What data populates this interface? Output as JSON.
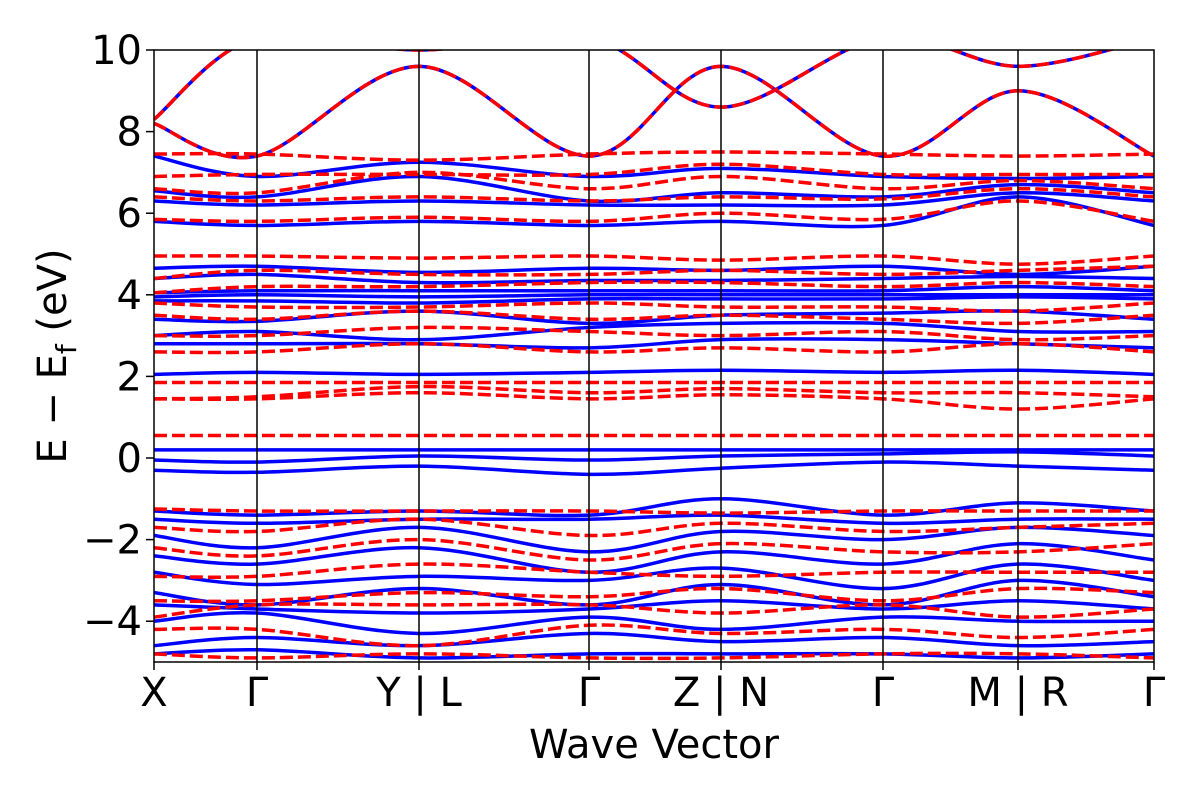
{
  "chart_data": {
    "type": "line",
    "title": "",
    "xlabel": "Wave Vector",
    "ylabel": {
      "main": "E − E",
      "sub": "f",
      "unit": " (eV)"
    },
    "ylim": [
      -5,
      10
    ],
    "xlim": [
      0,
      1
    ],
    "y_ticks": [
      -4,
      -2,
      0,
      2,
      4,
      6,
      8,
      10
    ],
    "y_tick_labels": [
      "−4",
      "−2",
      "0",
      "2",
      "4",
      "6",
      "8",
      "10"
    ],
    "k_path_ticks": [
      {
        "label": "X",
        "pos": 0.0
      },
      {
        "label": "Γ",
        "pos": 0.103
      },
      {
        "label": "Y | L",
        "pos": 0.265
      },
      {
        "label": "Γ",
        "pos": 0.435
      },
      {
        "label": "Z | N",
        "pos": 0.567
      },
      {
        "label": "Γ",
        "pos": 0.729
      },
      {
        "label": "M | R",
        "pos": 0.864
      },
      {
        "label": "Γ",
        "pos": 1.0
      }
    ],
    "series_styles": [
      {
        "color": "#0000ff",
        "dash": "solid"
      },
      {
        "color": "#ff0000",
        "dash": "dashed"
      }
    ],
    "series": [
      {
        "style": 0,
        "x": [
          0,
          0.103,
          0.265,
          0.435,
          0.567,
          0.729,
          0.864,
          1
        ],
        "y": [
          0.2,
          0.2,
          0.2,
          0.2,
          0.2,
          0.2,
          0.2,
          0.2
        ]
      },
      {
        "style": 0,
        "x": [
          0,
          0.103,
          0.265,
          0.435,
          0.567,
          0.729,
          0.864,
          1
        ],
        "y": [
          -0.05,
          -0.1,
          0.05,
          -0.05,
          0.05,
          0.1,
          0.15,
          0.05
        ]
      },
      {
        "style": 0,
        "x": [
          0,
          0.103,
          0.265,
          0.435,
          0.567,
          0.729,
          0.864,
          1
        ],
        "y": [
          -0.3,
          -0.35,
          -0.2,
          -0.4,
          -0.25,
          -0.1,
          -0.2,
          -0.3
        ]
      },
      {
        "style": 0,
        "x": [
          0,
          0.103,
          0.265,
          0.435,
          0.567,
          0.729,
          0.864,
          1
        ],
        "y": [
          2.05,
          2.1,
          2.05,
          2.1,
          2.15,
          2.1,
          2.15,
          2.05
        ]
      },
      {
        "style": 0,
        "x": [
          0,
          0.103,
          0.265,
          0.435,
          0.567,
          0.729,
          0.864,
          1
        ],
        "y": [
          2.8,
          2.8,
          2.8,
          2.7,
          2.9,
          2.9,
          2.8,
          2.7
        ]
      },
      {
        "style": 0,
        "x": [
          0,
          0.103,
          0.265,
          0.435,
          0.567,
          0.729,
          0.864,
          1
        ],
        "y": [
          3.0,
          3.1,
          2.9,
          3.2,
          3.3,
          3.3,
          3.1,
          3.1
        ]
      },
      {
        "style": 0,
        "x": [
          0,
          0.103,
          0.265,
          0.435,
          0.567,
          0.729,
          0.864,
          1
        ],
        "y": [
          3.4,
          3.35,
          3.6,
          3.3,
          3.5,
          3.55,
          3.6,
          3.4
        ]
      },
      {
        "style": 0,
        "x": [
          0,
          0.103,
          0.265,
          0.435,
          0.567,
          0.729,
          0.864,
          1
        ],
        "y": [
          3.85,
          3.85,
          3.8,
          3.9,
          3.9,
          3.9,
          3.95,
          3.9
        ]
      },
      {
        "style": 0,
        "x": [
          0,
          0.103,
          0.265,
          0.435,
          0.567,
          0.729,
          0.864,
          1
        ],
        "y": [
          3.95,
          4.0,
          3.95,
          4.0,
          4.0,
          4.0,
          4.0,
          4.0
        ]
      },
      {
        "style": 0,
        "x": [
          0,
          0.103,
          0.265,
          0.435,
          0.567,
          0.729,
          0.864,
          1
        ],
        "y": [
          4.05,
          4.1,
          4.1,
          4.1,
          4.1,
          4.1,
          4.2,
          4.1
        ]
      },
      {
        "style": 0,
        "x": [
          0,
          0.103,
          0.265,
          0.435,
          0.567,
          0.729,
          0.864,
          1
        ],
        "y": [
          4.4,
          4.5,
          4.3,
          4.35,
          4.35,
          4.4,
          4.45,
          4.4
        ]
      },
      {
        "style": 0,
        "x": [
          0,
          0.103,
          0.265,
          0.435,
          0.567,
          0.729,
          0.864,
          1
        ],
        "y": [
          4.65,
          4.7,
          4.55,
          4.65,
          4.6,
          4.7,
          4.5,
          4.7
        ]
      },
      {
        "style": 0,
        "x": [
          0,
          0.103,
          0.265,
          0.435,
          0.567,
          0.729,
          0.864,
          1
        ],
        "y": [
          5.8,
          5.7,
          5.8,
          5.7,
          5.8,
          5.7,
          6.4,
          5.7
        ]
      },
      {
        "style": 0,
        "x": [
          0,
          0.103,
          0.265,
          0.435,
          0.567,
          0.729,
          0.864,
          1
        ],
        "y": [
          6.3,
          6.2,
          6.3,
          6.2,
          6.2,
          6.2,
          6.5,
          6.3
        ]
      },
      {
        "style": 0,
        "x": [
          0,
          0.103,
          0.265,
          0.435,
          0.567,
          0.729,
          0.864,
          1
        ],
        "y": [
          6.55,
          6.4,
          6.9,
          6.3,
          6.5,
          6.4,
          6.7,
          6.5
        ]
      },
      {
        "style": 0,
        "x": [
          0,
          0.103,
          0.265,
          0.435,
          0.567,
          0.729,
          0.864,
          1
        ],
        "y": [
          7.4,
          6.9,
          7.25,
          6.9,
          7.1,
          6.9,
          6.85,
          6.9
        ]
      },
      {
        "style": 0,
        "x": [
          0,
          0.103,
          0.265,
          0.435,
          0.567,
          0.729,
          0.864,
          1
        ],
        "y": [
          8.2,
          7.4,
          9.6,
          7.4,
          9.6,
          7.4,
          9.0,
          7.4
        ]
      },
      {
        "style": 0,
        "x": [
          0,
          0.103,
          0.265,
          0.435,
          0.567,
          0.729,
          0.864,
          1
        ],
        "y": [
          8.3,
          10.3,
          10.0,
          10.3,
          8.6,
          10.3,
          9.6,
          10.3
        ]
      },
      {
        "style": 0,
        "x": [
          0,
          0.103,
          0.265,
          0.435,
          0.567,
          0.729,
          0.864,
          1
        ],
        "y": [
          -1.3,
          -1.4,
          -1.3,
          -1.4,
          -1.0,
          -1.4,
          -1.1,
          -1.3
        ]
      },
      {
        "style": 0,
        "x": [
          0,
          0.103,
          0.265,
          0.435,
          0.567,
          0.729,
          0.864,
          1
        ],
        "y": [
          -1.5,
          -1.6,
          -1.5,
          -1.5,
          -1.4,
          -1.6,
          -1.5,
          -1.5
        ]
      },
      {
        "style": 0,
        "x": [
          0,
          0.103,
          0.265,
          0.435,
          0.567,
          0.729,
          0.864,
          1
        ],
        "y": [
          -1.9,
          -2.2,
          -1.7,
          -2.3,
          -1.8,
          -2.0,
          -1.7,
          -1.9
        ]
      },
      {
        "style": 0,
        "x": [
          0,
          0.103,
          0.265,
          0.435,
          0.567,
          0.729,
          0.864,
          1
        ],
        "y": [
          -2.4,
          -2.6,
          -2.2,
          -2.8,
          -2.3,
          -2.6,
          -2.1,
          -2.5
        ]
      },
      {
        "style": 0,
        "x": [
          0,
          0.103,
          0.265,
          0.435,
          0.567,
          0.729,
          0.864,
          1
        ],
        "y": [
          -2.8,
          -3.1,
          -2.9,
          -3.0,
          -2.7,
          -3.2,
          -2.6,
          -3.0
        ]
      },
      {
        "style": 0,
        "x": [
          0,
          0.103,
          0.265,
          0.435,
          0.567,
          0.729,
          0.864,
          1
        ],
        "y": [
          -3.3,
          -3.6,
          -3.2,
          -3.6,
          -3.1,
          -3.6,
          -3.0,
          -3.4
        ]
      },
      {
        "style": 0,
        "x": [
          0,
          0.103,
          0.265,
          0.435,
          0.567,
          0.729,
          0.864,
          1
        ],
        "y": [
          -3.6,
          -3.7,
          -3.8,
          -3.7,
          -3.5,
          -3.7,
          -3.5,
          -3.7
        ]
      },
      {
        "style": 0,
        "x": [
          0,
          0.103,
          0.265,
          0.435,
          0.567,
          0.729,
          0.864,
          1
        ],
        "y": [
          -4.0,
          -3.8,
          -4.3,
          -3.9,
          -4.2,
          -3.9,
          -4.0,
          -4.0
        ]
      },
      {
        "style": 0,
        "x": [
          0,
          0.103,
          0.265,
          0.435,
          0.567,
          0.729,
          0.864,
          1
        ],
        "y": [
          -4.6,
          -4.4,
          -4.6,
          -4.3,
          -4.5,
          -4.4,
          -4.6,
          -4.5
        ]
      },
      {
        "style": 0,
        "x": [
          0,
          0.103,
          0.265,
          0.435,
          0.567,
          0.729,
          0.864,
          1
        ],
        "y": [
          -4.8,
          -4.7,
          -4.9,
          -4.8,
          -4.8,
          -4.8,
          -4.9,
          -4.8
        ]
      },
      {
        "style": 1,
        "x": [
          0,
          0.103,
          0.265,
          0.435,
          0.567,
          0.729,
          0.864,
          1
        ],
        "y": [
          0.55,
          0.55,
          0.55,
          0.55,
          0.55,
          0.55,
          0.55,
          0.55
        ]
      },
      {
        "style": 1,
        "x": [
          0,
          0.103,
          0.265,
          0.435,
          0.567,
          0.729,
          0.864,
          1
        ],
        "y": [
          1.45,
          1.45,
          1.6,
          1.45,
          1.55,
          1.45,
          1.2,
          1.45
        ]
      },
      {
        "style": 1,
        "x": [
          0,
          0.103,
          0.265,
          0.435,
          0.567,
          0.729,
          0.864,
          1
        ],
        "y": [
          1.45,
          1.5,
          1.75,
          1.6,
          1.7,
          1.6,
          1.6,
          1.5
        ]
      },
      {
        "style": 1,
        "x": [
          0,
          0.103,
          0.265,
          0.435,
          0.567,
          0.729,
          0.864,
          1
        ],
        "y": [
          1.85,
          1.85,
          1.85,
          1.85,
          1.85,
          1.85,
          1.85,
          1.85
        ]
      },
      {
        "style": 1,
        "x": [
          0,
          0.103,
          0.265,
          0.435,
          0.567,
          0.729,
          0.864,
          1
        ],
        "y": [
          2.6,
          2.6,
          2.8,
          2.6,
          2.7,
          2.6,
          2.8,
          2.6
        ]
      },
      {
        "style": 1,
        "x": [
          0,
          0.103,
          0.265,
          0.435,
          0.567,
          0.729,
          0.864,
          1
        ],
        "y": [
          3.0,
          3.0,
          3.2,
          3.1,
          3.0,
          3.1,
          2.9,
          3.0
        ]
      },
      {
        "style": 1,
        "x": [
          0,
          0.103,
          0.265,
          0.435,
          0.567,
          0.729,
          0.864,
          1
        ],
        "y": [
          3.5,
          3.4,
          3.6,
          3.4,
          3.5,
          3.4,
          3.3,
          3.5
        ]
      },
      {
        "style": 1,
        "x": [
          0,
          0.103,
          0.265,
          0.435,
          0.567,
          0.729,
          0.864,
          1
        ],
        "y": [
          3.8,
          3.7,
          3.7,
          3.8,
          3.7,
          3.7,
          3.6,
          3.8
        ]
      },
      {
        "style": 1,
        "x": [
          0,
          0.103,
          0.265,
          0.435,
          0.567,
          0.729,
          0.864,
          1
        ],
        "y": [
          4.05,
          4.2,
          4.2,
          4.3,
          4.3,
          4.2,
          4.3,
          4.2
        ]
      },
      {
        "style": 1,
        "x": [
          0,
          0.103,
          0.265,
          0.435,
          0.567,
          0.729,
          0.864,
          1
        ],
        "y": [
          4.4,
          4.6,
          4.5,
          4.5,
          4.6,
          4.5,
          4.6,
          4.7
        ]
      },
      {
        "style": 1,
        "x": [
          0,
          0.103,
          0.265,
          0.435,
          0.567,
          0.729,
          0.864,
          1
        ],
        "y": [
          4.95,
          4.95,
          4.9,
          4.95,
          4.85,
          4.95,
          4.75,
          4.95
        ]
      },
      {
        "style": 1,
        "x": [
          0,
          0.103,
          0.265,
          0.435,
          0.567,
          0.729,
          0.864,
          1
        ],
        "y": [
          5.85,
          5.8,
          5.9,
          5.8,
          6.0,
          5.85,
          6.3,
          5.8
        ]
      },
      {
        "style": 1,
        "x": [
          0,
          0.103,
          0.265,
          0.435,
          0.567,
          0.729,
          0.864,
          1
        ],
        "y": [
          6.4,
          6.3,
          6.4,
          6.3,
          6.4,
          6.35,
          6.6,
          6.4
        ]
      },
      {
        "style": 1,
        "x": [
          0,
          0.103,
          0.265,
          0.435,
          0.567,
          0.729,
          0.864,
          1
        ],
        "y": [
          6.6,
          6.5,
          7.0,
          6.6,
          6.9,
          6.6,
          6.8,
          6.6
        ]
      },
      {
        "style": 1,
        "x": [
          0,
          0.103,
          0.265,
          0.435,
          0.567,
          0.729,
          0.864,
          1
        ],
        "y": [
          6.9,
          6.95,
          6.95,
          6.95,
          7.2,
          6.95,
          6.95,
          6.95
        ]
      },
      {
        "style": 1,
        "x": [
          0,
          0.103,
          0.265,
          0.435,
          0.567,
          0.729,
          0.864,
          1
        ],
        "y": [
          7.45,
          7.45,
          7.3,
          7.45,
          7.5,
          7.45,
          7.4,
          7.45
        ]
      },
      {
        "style": 1,
        "x": [
          0,
          0.103,
          0.265,
          0.435,
          0.567,
          0.729,
          0.864,
          1
        ],
        "y": [
          8.2,
          7.4,
          9.6,
          7.4,
          9.6,
          7.4,
          9.0,
          7.4
        ]
      },
      {
        "style": 1,
        "x": [
          0,
          0.103,
          0.265,
          0.435,
          0.567,
          0.729,
          0.864,
          1
        ],
        "y": [
          8.3,
          10.3,
          10.0,
          10.3,
          8.6,
          10.3,
          9.6,
          10.3
        ]
      },
      {
        "style": 1,
        "x": [
          0,
          0.103,
          0.265,
          0.435,
          0.567,
          0.729,
          0.864,
          1
        ],
        "y": [
          -1.25,
          -1.3,
          -1.3,
          -1.3,
          -1.35,
          -1.3,
          -1.3,
          -1.3
        ]
      },
      {
        "style": 1,
        "x": [
          0,
          0.103,
          0.265,
          0.435,
          0.567,
          0.729,
          0.864,
          1
        ],
        "y": [
          -1.7,
          -1.8,
          -1.5,
          -1.9,
          -1.6,
          -1.8,
          -1.7,
          -1.6
        ]
      },
      {
        "style": 1,
        "x": [
          0,
          0.103,
          0.265,
          0.435,
          0.567,
          0.729,
          0.864,
          1
        ],
        "y": [
          -2.2,
          -2.4,
          -2.0,
          -2.5,
          -2.1,
          -2.3,
          -2.3,
          -2.1
        ]
      },
      {
        "style": 1,
        "x": [
          0,
          0.103,
          0.265,
          0.435,
          0.567,
          0.729,
          0.864,
          1
        ],
        "y": [
          -2.9,
          -2.9,
          -2.6,
          -2.8,
          -2.9,
          -2.8,
          -2.8,
          -2.8
        ]
      },
      {
        "style": 1,
        "x": [
          0,
          0.103,
          0.265,
          0.435,
          0.567,
          0.729,
          0.864,
          1
        ],
        "y": [
          -3.5,
          -3.5,
          -3.3,
          -3.4,
          -3.2,
          -3.5,
          -3.2,
          -3.3
        ]
      },
      {
        "style": 1,
        "x": [
          0,
          0.103,
          0.265,
          0.435,
          0.567,
          0.729,
          0.864,
          1
        ],
        "y": [
          -3.9,
          -3.6,
          -3.6,
          -3.6,
          -3.8,
          -3.6,
          -3.9,
          -3.7
        ]
      },
      {
        "style": 1,
        "x": [
          0,
          0.103,
          0.265,
          0.435,
          0.567,
          0.729,
          0.864,
          1
        ],
        "y": [
          -4.2,
          -4.2,
          -4.6,
          -4.1,
          -4.3,
          -4.2,
          -4.4,
          -4.2
        ]
      },
      {
        "style": 1,
        "x": [
          0,
          0.103,
          0.265,
          0.435,
          0.567,
          0.729,
          0.864,
          1
        ],
        "y": [
          -4.8,
          -4.9,
          -4.8,
          -4.9,
          -4.9,
          -4.8,
          -4.8,
          -4.9
        ]
      }
    ]
  }
}
